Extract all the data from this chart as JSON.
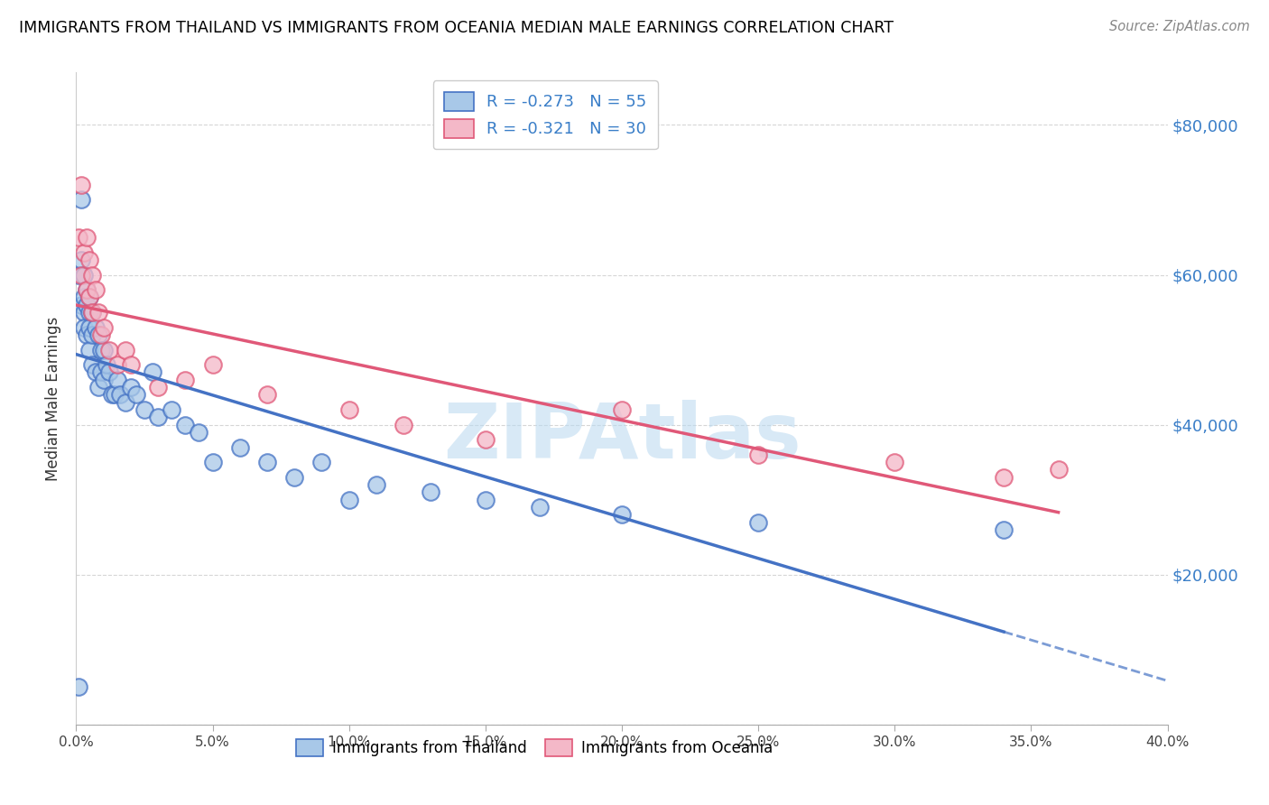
{
  "title": "IMMIGRANTS FROM THAILAND VS IMMIGRANTS FROM OCEANIA MEDIAN MALE EARNINGS CORRELATION CHART",
  "source": "Source: ZipAtlas.com",
  "ylabel": "Median Male Earnings",
  "legend_label1": "Immigrants from Thailand",
  "legend_label2": "Immigrants from Oceania",
  "R1": -0.273,
  "N1": 55,
  "R2": -0.321,
  "N2": 30,
  "xlim": [
    0.0,
    0.4
  ],
  "ylim": [
    0,
    87000
  ],
  "xticks": [
    0.0,
    0.05,
    0.1,
    0.15,
    0.2,
    0.25,
    0.3,
    0.35,
    0.4
  ],
  "ytick_labels": [
    "",
    "$20,000",
    "$40,000",
    "$60,000",
    "$80,000"
  ],
  "ytick_vals": [
    0,
    20000,
    40000,
    60000,
    80000
  ],
  "color_blue": "#a8c8e8",
  "color_pink": "#f4b8c8",
  "color_line_blue": "#4472c4",
  "color_line_pink": "#e05878",
  "watermark": "ZIPAtlas",
  "watermark_color": "#b8d8f0",
  "thailand_x": [
    0.001,
    0.001,
    0.002,
    0.002,
    0.002,
    0.003,
    0.003,
    0.003,
    0.003,
    0.004,
    0.004,
    0.004,
    0.005,
    0.005,
    0.005,
    0.005,
    0.006,
    0.006,
    0.006,
    0.007,
    0.007,
    0.008,
    0.008,
    0.009,
    0.009,
    0.01,
    0.01,
    0.011,
    0.012,
    0.013,
    0.014,
    0.015,
    0.016,
    0.018,
    0.02,
    0.022,
    0.025,
    0.028,
    0.03,
    0.035,
    0.04,
    0.045,
    0.05,
    0.06,
    0.07,
    0.08,
    0.09,
    0.1,
    0.11,
    0.13,
    0.15,
    0.17,
    0.2,
    0.25,
    0.34
  ],
  "thailand_y": [
    5000,
    60000,
    56000,
    62000,
    70000,
    55000,
    57000,
    60000,
    53000,
    58000,
    52000,
    56000,
    55000,
    50000,
    57000,
    53000,
    52000,
    48000,
    55000,
    53000,
    47000,
    52000,
    45000,
    50000,
    47000,
    50000,
    46000,
    48000,
    47000,
    44000,
    44000,
    46000,
    44000,
    43000,
    45000,
    44000,
    42000,
    47000,
    41000,
    42000,
    40000,
    39000,
    35000,
    37000,
    35000,
    33000,
    35000,
    30000,
    32000,
    31000,
    30000,
    29000,
    28000,
    27000,
    26000
  ],
  "oceania_x": [
    0.001,
    0.002,
    0.002,
    0.003,
    0.004,
    0.004,
    0.005,
    0.005,
    0.006,
    0.006,
    0.007,
    0.008,
    0.009,
    0.01,
    0.012,
    0.015,
    0.018,
    0.02,
    0.03,
    0.04,
    0.05,
    0.07,
    0.1,
    0.12,
    0.15,
    0.2,
    0.25,
    0.3,
    0.34,
    0.36
  ],
  "oceania_y": [
    65000,
    72000,
    60000,
    63000,
    58000,
    65000,
    62000,
    57000,
    60000,
    55000,
    58000,
    55000,
    52000,
    53000,
    50000,
    48000,
    50000,
    48000,
    45000,
    46000,
    48000,
    44000,
    42000,
    40000,
    38000,
    42000,
    36000,
    35000,
    33000,
    34000
  ]
}
